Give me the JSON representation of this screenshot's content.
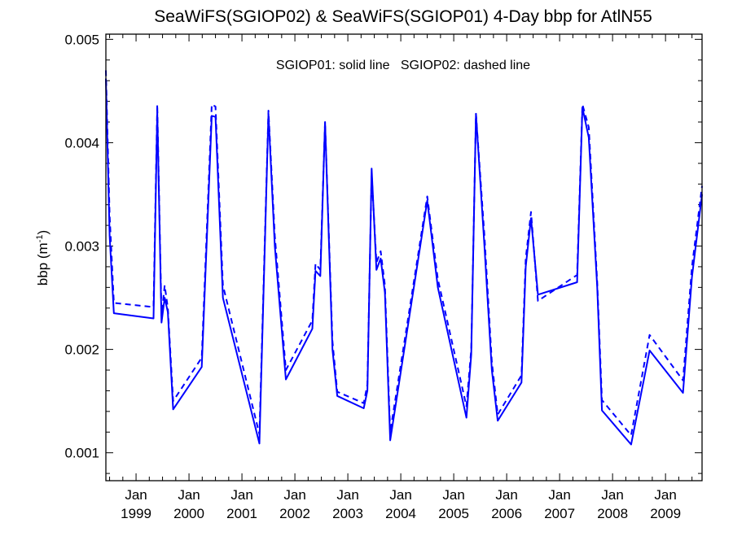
{
  "chart_data": {
    "type": "line",
    "title": "SeaWiFS(SGIOP02) & SeaWiFS(SGIOP01) 4-Day bbp for AtlN55",
    "annotation": "SGIOP01: solid line   SGIOP02: dashed line",
    "ylabel_base": "bbp (m",
    "ylabel_sup": "-1",
    "ylabel_close": ")",
    "xlabel": "",
    "xlim": [
      1998.43,
      2009.69
    ],
    "ylim": [
      0.00073,
      0.00505
    ],
    "yticks": [
      0.001,
      0.002,
      0.003,
      0.004,
      0.005
    ],
    "ytick_labels": [
      "0.001",
      "0.002",
      "0.003",
      "0.004",
      "0.005"
    ],
    "xticks": [
      1999,
      2000,
      2001,
      2002,
      2003,
      2004,
      2005,
      2006,
      2007,
      2008,
      2009
    ],
    "xtick_month": "Jan",
    "xtick_years": [
      "1999",
      "2000",
      "2001",
      "2002",
      "2003",
      "2004",
      "2005",
      "2006",
      "2007",
      "2008",
      "2009"
    ],
    "grid": false,
    "color": "#0000ff",
    "series": [
      {
        "name": "SGIOP01",
        "style": "solid",
        "points": [
          [
            1998.43,
            0.00462
          ],
          [
            1998.5,
            0.0031
          ],
          [
            1998.58,
            0.00235
          ],
          [
            1999.33,
            0.0023
          ],
          [
            1999.4,
            0.0043
          ],
          [
            1999.48,
            0.00226
          ],
          [
            1999.54,
            0.0025
          ],
          [
            1999.6,
            0.00236
          ],
          [
            1999.7,
            0.00142
          ],
          [
            2000.24,
            0.00183
          ],
          [
            2000.43,
            0.00426
          ],
          [
            2000.5,
            0.00425
          ],
          [
            2000.64,
            0.0025
          ],
          [
            2001.33,
            0.00109
          ],
          [
            2001.5,
            0.00428
          ],
          [
            2001.62,
            0.003
          ],
          [
            2001.83,
            0.00171
          ],
          [
            2002.33,
            0.0022
          ],
          [
            2002.39,
            0.00276
          ],
          [
            2002.48,
            0.00271
          ],
          [
            2002.57,
            0.0042
          ],
          [
            2002.71,
            0.002
          ],
          [
            2002.8,
            0.00155
          ],
          [
            2003.3,
            0.00143
          ],
          [
            2003.37,
            0.0016
          ],
          [
            2003.45,
            0.00375
          ],
          [
            2003.54,
            0.00277
          ],
          [
            2003.62,
            0.00288
          ],
          [
            2003.7,
            0.00255
          ],
          [
            2003.8,
            0.00112
          ],
          [
            2004.5,
            0.00344
          ],
          [
            2004.7,
            0.0026
          ],
          [
            2005.24,
            0.00134
          ],
          [
            2005.33,
            0.00195
          ],
          [
            2005.42,
            0.00428
          ],
          [
            2005.58,
            0.003
          ],
          [
            2005.72,
            0.0018
          ],
          [
            2005.83,
            0.00131
          ],
          [
            2006.28,
            0.00168
          ],
          [
            2006.36,
            0.0028
          ],
          [
            2006.46,
            0.00327
          ],
          [
            2006.59,
            0.00253
          ],
          [
            2007.33,
            0.00265
          ],
          [
            2007.43,
            0.00434
          ],
          [
            2007.55,
            0.00405
          ],
          [
            2007.71,
            0.0026
          ],
          [
            2007.8,
            0.00141
          ],
          [
            2008.35,
            0.00108
          ],
          [
            2008.7,
            0.00199
          ],
          [
            2009.33,
            0.00158
          ],
          [
            2009.5,
            0.0027
          ],
          [
            2009.69,
            0.0035
          ]
        ]
      },
      {
        "name": "SGIOP02",
        "style": "dashed",
        "points": [
          [
            1998.43,
            0.0047
          ],
          [
            1998.5,
            0.0033
          ],
          [
            1998.58,
            0.00245
          ],
          [
            1999.33,
            0.00241
          ],
          [
            1999.4,
            0.00437
          ],
          [
            1999.48,
            0.00232
          ],
          [
            1999.54,
            0.00262
          ],
          [
            1999.6,
            0.0024
          ],
          [
            1999.7,
            0.0015
          ],
          [
            2000.24,
            0.00192
          ],
          [
            2000.43,
            0.00437
          ],
          [
            2000.5,
            0.00435
          ],
          [
            2000.64,
            0.00262
          ],
          [
            2001.33,
            0.00118
          ],
          [
            2001.5,
            0.00431
          ],
          [
            2001.62,
            0.0031
          ],
          [
            2001.83,
            0.0018
          ],
          [
            2002.33,
            0.00228
          ],
          [
            2002.39,
            0.00283
          ],
          [
            2002.48,
            0.00277
          ],
          [
            2002.57,
            0.0042
          ],
          [
            2002.71,
            0.00208
          ],
          [
            2002.8,
            0.00159
          ],
          [
            2003.3,
            0.00148
          ],
          [
            2003.37,
            0.00166
          ],
          [
            2003.45,
            0.0037
          ],
          [
            2003.54,
            0.00284
          ],
          [
            2003.62,
            0.00295
          ],
          [
            2003.7,
            0.00262
          ],
          [
            2003.8,
            0.0012
          ],
          [
            2004.5,
            0.00348
          ],
          [
            2004.7,
            0.00268
          ],
          [
            2005.24,
            0.00145
          ],
          [
            2005.33,
            0.002
          ],
          [
            2005.42,
            0.00428
          ],
          [
            2005.58,
            0.0031
          ],
          [
            2005.72,
            0.00188
          ],
          [
            2005.83,
            0.00137
          ],
          [
            2006.28,
            0.00175
          ],
          [
            2006.36,
            0.00288
          ],
          [
            2006.46,
            0.00333
          ],
          [
            2006.59,
            0.00247
          ],
          [
            2007.33,
            0.00272
          ],
          [
            2007.43,
            0.00437
          ],
          [
            2007.55,
            0.00415
          ],
          [
            2007.71,
            0.00265
          ],
          [
            2007.8,
            0.00151
          ],
          [
            2008.35,
            0.00117
          ],
          [
            2008.7,
            0.00214
          ],
          [
            2009.33,
            0.0017
          ],
          [
            2009.5,
            0.0028
          ],
          [
            2009.69,
            0.00358
          ]
        ]
      }
    ]
  }
}
